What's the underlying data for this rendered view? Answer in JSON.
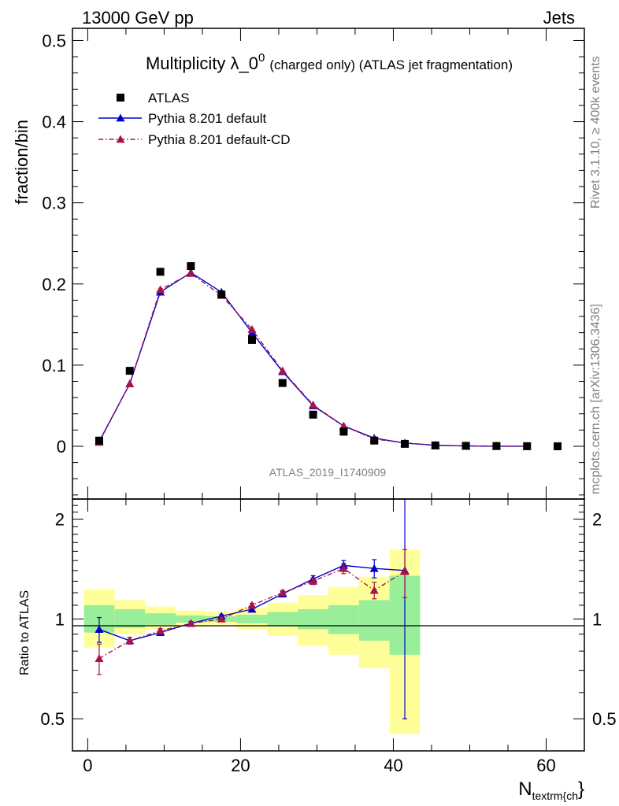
{
  "header": {
    "left": "13000 GeV pp",
    "right": "Jets"
  },
  "side_labels": {
    "rivet": "Rivet 3.1.10, ≥ 400k events",
    "mcplots": "mcplots.cern.ch [arXiv:1306.3436]"
  },
  "chart_data": [
    {
      "type": "scatter",
      "title_main": "Multiplicity λ_0",
      "title_sup": "0",
      "title_tail": "(charged only) (ATLAS jet fragmentation)",
      "analysis_label": "ATLAS_2019_I1740909",
      "ylabel": "fraction/bin",
      "ylim": [
        -0.065,
        0.515
      ],
      "xlim": [
        -2,
        65
      ],
      "yticks": [
        0,
        0.1,
        0.2,
        0.3,
        0.4,
        0.5
      ],
      "ytick_labels": [
        "0",
        "0.1",
        "0.2",
        "0.3",
        "0.4",
        "0.5"
      ],
      "legend_placement": "top-left",
      "colors": {
        "data": "#000000",
        "default": "#0000cc",
        "cd": "#aa1144"
      },
      "series": [
        {
          "name": "ATLAS",
          "style": "markers",
          "x": [
            1.5,
            5.5,
            9.5,
            13.5,
            17.5,
            21.5,
            25.5,
            29.5,
            33.5,
            37.5,
            41.5,
            45.5,
            49.5,
            53.5,
            57.5,
            61.5
          ],
          "y": [
            0.007,
            0.093,
            0.215,
            0.222,
            0.187,
            0.131,
            0.078,
            0.039,
            0.018,
            0.007,
            0.003,
            0.001,
            0.0005,
            0.0003,
            0.0001,
            0.0
          ]
        },
        {
          "name": "Pythia 8.201 default",
          "style": "solid",
          "x": [
            1.5,
            5.5,
            9.5,
            13.5,
            17.5,
            21.5,
            25.5,
            29.5,
            33.5,
            37.5,
            41.5,
            45.5,
            49.5,
            53.5,
            57.5
          ],
          "y": [
            0.006,
            0.077,
            0.19,
            0.214,
            0.19,
            0.14,
            0.092,
            0.05,
            0.025,
            0.01,
            0.004,
            0.0012,
            0.0004,
            0.0001,
            0.0
          ]
        },
        {
          "name": "Pythia 8.201 default-CD",
          "style": "dashdot",
          "x": [
            1.5,
            5.5,
            9.5,
            13.5,
            17.5,
            21.5,
            25.5,
            29.5,
            33.5,
            37.5,
            41.5,
            45.5,
            49.5,
            57.5
          ],
          "y": [
            0.005,
            0.077,
            0.193,
            0.213,
            0.186,
            0.144,
            0.093,
            0.051,
            0.025,
            0.009,
            0.004,
            0.0012,
            0.0004,
            0.0
          ]
        }
      ]
    },
    {
      "type": "scatter",
      "ylabel": "Ratio to ATLAS",
      "xlabel": "N",
      "xlabel_sub": "textrm{ch",
      "xlabel_tail": "}",
      "ylim": [
        0.4,
        2.3
      ],
      "xlim": [
        -2,
        65
      ],
      "log_y": true,
      "xticks": [
        0,
        20,
        40,
        60
      ],
      "xtick_labels": [
        "0",
        "20",
        "40",
        "60"
      ],
      "yticks": [
        0.5,
        1,
        2
      ],
      "ytick_labels": [
        "0.5",
        "1",
        "2"
      ],
      "band_colors": {
        "outer": "#ffff99",
        "inner": "#99ee99"
      },
      "bands": [
        {
          "x0": -0.5,
          "x1": 3.5,
          "outer": [
            0.82,
            1.23
          ],
          "inner": [
            0.91,
            1.1
          ]
        },
        {
          "x0": 3.5,
          "x1": 7.5,
          "outer": [
            0.9,
            1.14
          ],
          "inner": [
            0.94,
            1.07
          ]
        },
        {
          "x0": 7.5,
          "x1": 11.5,
          "outer": [
            0.93,
            1.09
          ],
          "inner": [
            0.96,
            1.04
          ]
        },
        {
          "x0": 11.5,
          "x1": 15.5,
          "outer": [
            0.95,
            1.06
          ],
          "inner": [
            0.975,
            1.025
          ]
        },
        {
          "x0": 15.5,
          "x1": 19.5,
          "outer": [
            0.96,
            1.05
          ],
          "inner": [
            0.98,
            1.02
          ]
        },
        {
          "x0": 19.5,
          "x1": 23.5,
          "outer": [
            0.93,
            1.08
          ],
          "inner": [
            0.97,
            1.03
          ]
        },
        {
          "x0": 23.5,
          "x1": 27.5,
          "outer": [
            0.89,
            1.12
          ],
          "inner": [
            0.95,
            1.05
          ]
        },
        {
          "x0": 27.5,
          "x1": 31.5,
          "outer": [
            0.83,
            1.18
          ],
          "inner": [
            0.93,
            1.07
          ]
        },
        {
          "x0": 31.5,
          "x1": 35.5,
          "outer": [
            0.78,
            1.25
          ],
          "inner": [
            0.9,
            1.1
          ]
        },
        {
          "x0": 35.5,
          "x1": 39.5,
          "outer": [
            0.71,
            1.34
          ],
          "inner": [
            0.86,
            1.14
          ]
        },
        {
          "x0": 39.5,
          "x1": 43.5,
          "outer": [
            0.45,
            1.62
          ],
          "inner": [
            0.78,
            1.35
          ]
        }
      ],
      "series": [
        {
          "name": "Pythia 8.201 default",
          "style": "solid",
          "x": [
            1.5,
            5.5,
            9.5,
            13.5,
            17.5,
            21.5,
            25.5,
            29.5,
            33.5,
            37.5,
            41.5
          ],
          "y": [
            0.93,
            0.86,
            0.91,
            0.97,
            1.02,
            1.07,
            1.19,
            1.32,
            1.45,
            1.42,
            1.4
          ],
          "err": [
            0.08,
            0.02,
            0.015,
            0.012,
            0.01,
            0.015,
            0.02,
            0.03,
            0.05,
            0.09,
            0.9
          ]
        },
        {
          "name": "Pythia 8.201 default-CD",
          "style": "dashdot",
          "x": [
            1.5,
            5.5,
            9.5,
            13.5,
            17.5,
            21.5,
            25.5,
            29.5,
            33.5,
            37.5,
            41.5
          ],
          "y": [
            0.76,
            0.86,
            0.92,
            0.97,
            1.0,
            1.1,
            1.2,
            1.3,
            1.42,
            1.22,
            1.39
          ],
          "err": [
            0.08,
            0.02,
            0.015,
            0.012,
            0.01,
            0.015,
            0.02,
            0.03,
            0.05,
            0.07,
            0.23
          ]
        }
      ]
    }
  ]
}
